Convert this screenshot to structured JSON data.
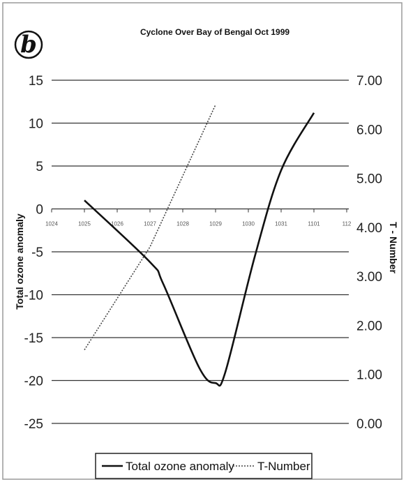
{
  "panel_label": "b",
  "chart_data": {
    "type": "line",
    "title": "Cyclone Over Bay of Bengal Oct 1999",
    "xlabel": "",
    "ylabel": "Total ozone anomaly",
    "y2label": "T - Number",
    "categories": [
      "1024",
      "1025",
      "1026",
      "1027",
      "1028",
      "1029",
      "1030",
      "1031",
      "1101",
      "112"
    ],
    "ylim": [
      -25,
      15
    ],
    "yticks": [
      "15",
      "10",
      "5",
      "0",
      "-5",
      "-10",
      "-15",
      "-20",
      "-25"
    ],
    "y2lim": [
      0,
      7
    ],
    "y2ticks": [
      "7.00",
      "6.00",
      "5.00",
      "4.00",
      "3.00",
      "2.00",
      "1.00",
      "0.00"
    ],
    "grid": true,
    "legend_position": "bottom",
    "series": [
      {
        "name": "Total ozone anomaly",
        "axis": "left",
        "style": "solid",
        "color": "#111111",
        "x": [
          1,
          3,
          3.4,
          4.5,
          5,
          5.3,
          6.2,
          7,
          8
        ],
        "y": [
          1,
          -6.2,
          -8.7,
          -18.5,
          -20.3,
          -19,
          -5.5,
          4.5,
          11.2
        ]
      },
      {
        "name": "T-Number",
        "axis": "right",
        "style": "dotted",
        "color": "#444444",
        "x": [
          1,
          3,
          5
        ],
        "y": [
          1.5,
          3.6,
          6.5
        ]
      }
    ]
  }
}
